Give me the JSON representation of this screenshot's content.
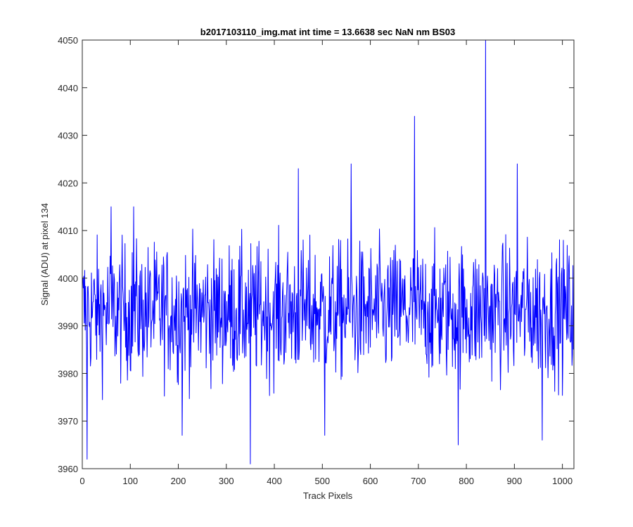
{
  "chart_data": {
    "type": "line",
    "title": "b2017103110_img.mat int time = 13.6638 sec  NaN nm BS03",
    "xlabel": "Track Pixels",
    "ylabel": "Signal (ADU) at pixel 134",
    "xlim": [
      0,
      1024
    ],
    "ylim": [
      3960,
      4050
    ],
    "xticks": [
      0,
      100,
      200,
      300,
      400,
      500,
      600,
      700,
      800,
      900,
      1000
    ],
    "yticks": [
      3960,
      3970,
      3980,
      3990,
      4000,
      4010,
      4020,
      4030,
      4040,
      4050
    ],
    "grid": false,
    "legend": "none",
    "series": [
      {
        "color": "#0000ff",
        "n_points": 1024,
        "baseline": 3993,
        "noise_amplitude": 7,
        "spikes": [
          {
            "x": 10,
            "y": 3962
          },
          {
            "x": 60,
            "y": 4015
          },
          {
            "x": 107,
            "y": 4015
          },
          {
            "x": 208,
            "y": 3967
          },
          {
            "x": 350,
            "y": 3961
          },
          {
            "x": 450,
            "y": 4023
          },
          {
            "x": 505,
            "y": 3967
          },
          {
            "x": 560,
            "y": 4024
          },
          {
            "x": 692,
            "y": 4034
          },
          {
            "x": 783,
            "y": 3965
          },
          {
            "x": 840,
            "y": 4050
          },
          {
            "x": 906,
            "y": 4024
          },
          {
            "x": 958,
            "y": 3966
          }
        ]
      }
    ]
  }
}
